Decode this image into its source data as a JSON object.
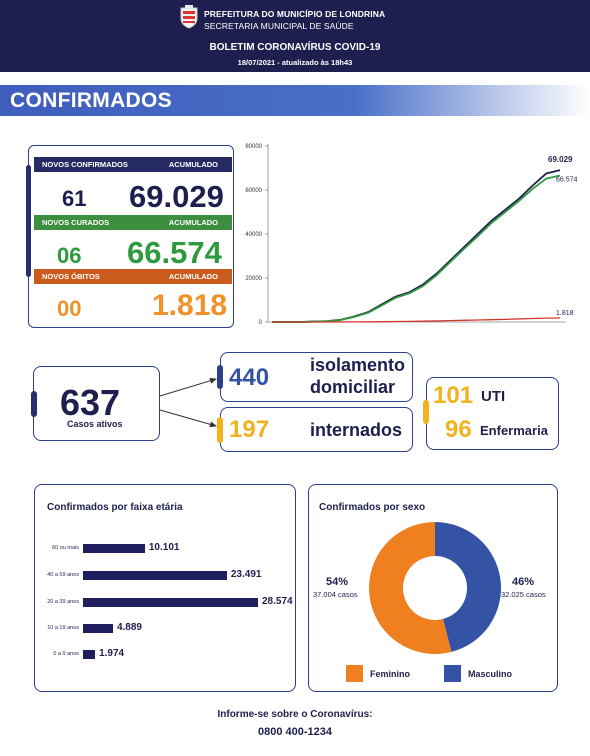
{
  "header": {
    "org_line1": "PREFEITURA DO MUNICÍPIO DE LONDRINA",
    "org_line2": "SECRETARIA MUNICIPAL DE SAÚDE",
    "title": "BOLETIM CORONAVÍRUS COVID-19",
    "date": "18/07/2021 - atualizado às 18h43",
    "crest_icon": "coat-of-arms-icon"
  },
  "banner": {
    "title": "CONFIRMADOS"
  },
  "stats": [
    {
      "label": "NOVOS CONFIRMADOS",
      "acc_label": "ACUMULADO",
      "new": "61",
      "total": "69.029",
      "head_color": "#262b63",
      "num_color": "#1e1f4f"
    },
    {
      "label": "NOVOS CURADOS",
      "acc_label": "ACUMULADO",
      "new": "06",
      "total": "66.574",
      "head_color": "#3d8e3e",
      "num_color": "#2e9a3e"
    },
    {
      "label": "NOVOS ÓBITOS",
      "acc_label": "ACUMULADO",
      "new": "00",
      "total": "1.818",
      "head_color": "#c95b1c",
      "num_color": "#f0922a"
    }
  ],
  "chart_data": {
    "type": "line",
    "y_ticks": [
      "80000",
      "60000",
      "40000",
      "20000",
      "0"
    ],
    "ylim": [
      0,
      80000
    ],
    "series": [
      {
        "values": [
          0,
          0,
          0,
          200,
          400,
          1000,
          2500,
          4500,
          8000,
          11500,
          13500,
          17000,
          22000,
          28000,
          34000,
          40000,
          46000,
          51000,
          56000,
          62000,
          67500,
          69029
        ],
        "color": "#1e1f4f",
        "end_label": "69.029"
      },
      {
        "values": [
          0,
          0,
          0,
          150,
          350,
          900,
          2300,
          4200,
          7500,
          11000,
          13000,
          16300,
          21300,
          27300,
          33200,
          39000,
          45000,
          50000,
          55000,
          60500,
          65200,
          66574
        ],
        "color": "#2e9a3e",
        "end_label": "66.574"
      },
      {
        "values": [
          0,
          0,
          0,
          5,
          10,
          25,
          50,
          80,
          140,
          220,
          300,
          380,
          480,
          620,
          760,
          900,
          1050,
          1200,
          1400,
          1600,
          1750,
          1818
        ],
        "color": "#d0392b",
        "end_label": "1.818"
      }
    ]
  },
  "active": {
    "value": "637",
    "label": "Casos ativos"
  },
  "isolation": {
    "value": "440",
    "label_line1": "isolamento",
    "label_line2": "domiciliar"
  },
  "hospital": {
    "value": "197",
    "label": "internados"
  },
  "uti": {
    "value": "101",
    "label": "UTI"
  },
  "ward": {
    "value": "96",
    "label": "Enfermaria"
  },
  "age": {
    "title": "Confirmados por faixa etária",
    "chart_data": {
      "type": "bar",
      "categories": [
        "60 ou mais",
        "40 a 59 anos",
        "20 a 39 anos",
        "10 a 19 anos",
        "0 a 9 anos"
      ],
      "values": [
        10101,
        23491,
        28574,
        4889,
        1974
      ],
      "value_labels": [
        "10.101",
        "23.491",
        "28.574",
        "4.889",
        "1.974"
      ]
    }
  },
  "sex": {
    "title": "Confirmados por sexo",
    "chart_data": {
      "type": "pie",
      "categories": [
        "Feminino",
        "Masculino"
      ],
      "values": [
        54,
        46
      ],
      "percent_labels": [
        "54%",
        "46%"
      ],
      "case_labels": [
        "37.004 casos",
        "32.025 casos"
      ],
      "colors": [
        "#f07f1f",
        "#3453a5"
      ]
    }
  },
  "footer": {
    "line1": "Informe-se sobre o Coronavírus:",
    "phone": "0800 400-1234"
  }
}
